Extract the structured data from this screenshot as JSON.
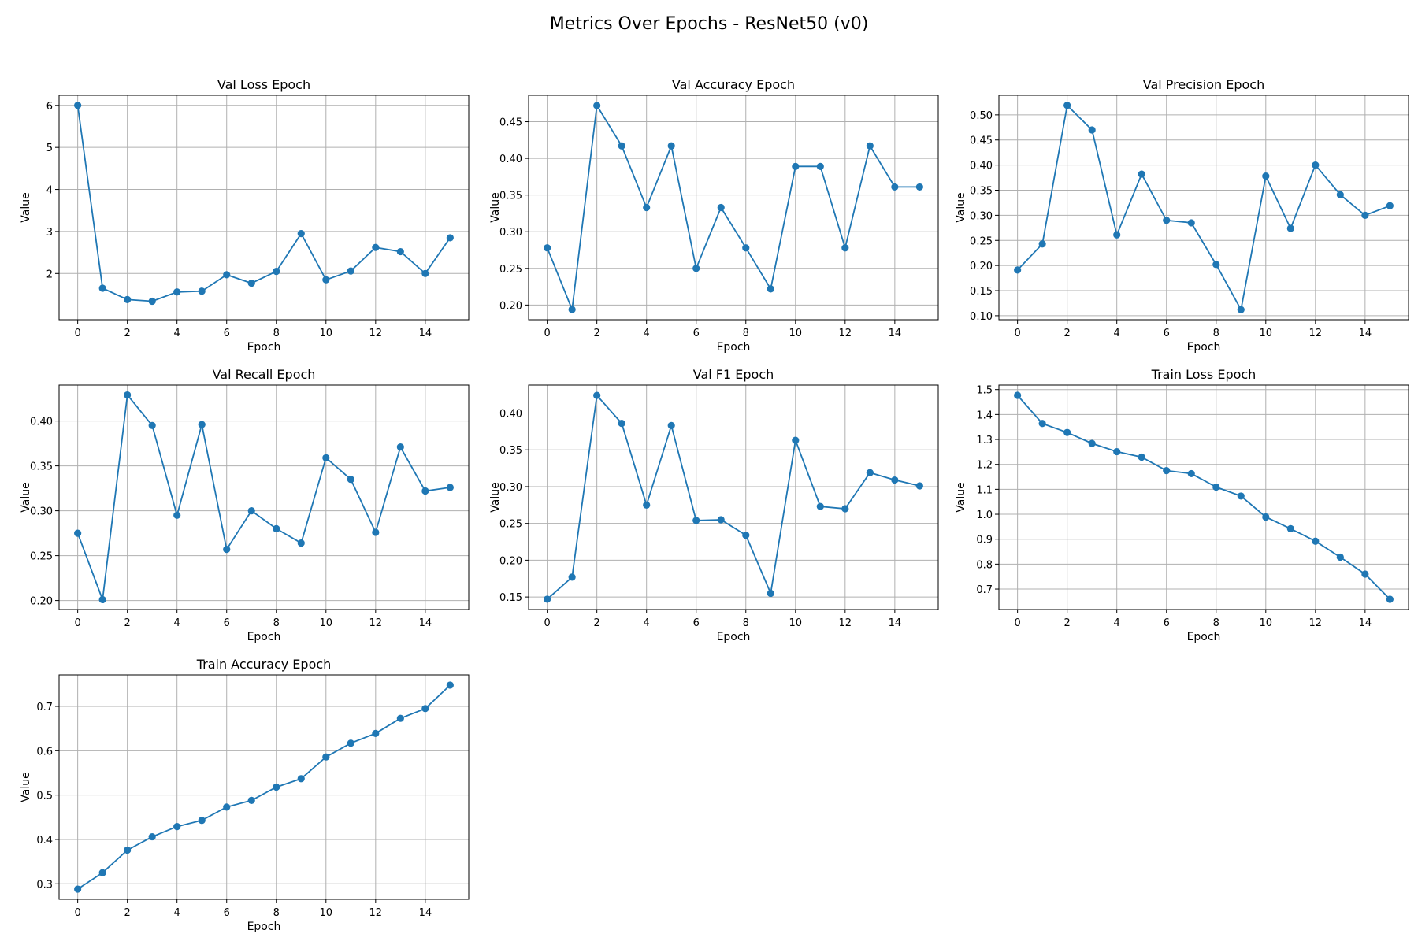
{
  "figure": {
    "title": "Metrics Over Epochs - ResNet50 (v0)",
    "line_color": "#1f77b4",
    "grid_color": "#b0b0b0"
  },
  "chart_data": [
    {
      "type": "line",
      "title": "Val Loss Epoch",
      "xlabel": "Epoch",
      "ylabel": "Value",
      "x": [
        0,
        1,
        2,
        3,
        4,
        5,
        6,
        7,
        8,
        9,
        10,
        11,
        12,
        13,
        14,
        15
      ],
      "values": [
        6.0,
        1.65,
        1.38,
        1.34,
        1.56,
        1.58,
        1.97,
        1.77,
        2.05,
        2.95,
        1.85,
        2.06,
        2.62,
        2.52,
        2.0,
        2.85
      ],
      "xlim": [
        -0.75,
        15.75
      ],
      "ylim": [
        0.9,
        6.24
      ],
      "xticks": [
        0,
        2,
        4,
        6,
        8,
        10,
        12,
        14
      ],
      "yticks": [
        2,
        3,
        4,
        5,
        6
      ],
      "ytick_labels": [
        "2",
        "3",
        "4",
        "5",
        "6"
      ],
      "grid": true
    },
    {
      "type": "line",
      "title": "Val Accuracy Epoch",
      "xlabel": "Epoch",
      "ylabel": "Value",
      "x": [
        0,
        1,
        2,
        3,
        4,
        5,
        6,
        7,
        8,
        9,
        10,
        11,
        12,
        13,
        14,
        15
      ],
      "values": [
        0.278,
        0.194,
        0.472,
        0.417,
        0.333,
        0.417,
        0.25,
        0.333,
        0.278,
        0.222,
        0.389,
        0.389,
        0.278,
        0.417,
        0.361,
        0.361
      ],
      "xlim": [
        -0.75,
        15.75
      ],
      "ylim": [
        0.18,
        0.486
      ],
      "xticks": [
        0,
        2,
        4,
        6,
        8,
        10,
        12,
        14
      ],
      "yticks": [
        0.2,
        0.25,
        0.3,
        0.35,
        0.4,
        0.45
      ],
      "ytick_labels": [
        "0.20",
        "0.25",
        "0.30",
        "0.35",
        "0.40",
        "0.45"
      ],
      "grid": true
    },
    {
      "type": "line",
      "title": "Val Precision Epoch",
      "xlabel": "Epoch",
      "ylabel": "Value",
      "x": [
        0,
        1,
        2,
        3,
        4,
        5,
        6,
        7,
        8,
        9,
        10,
        11,
        12,
        13,
        14,
        15
      ],
      "values": [
        0.191,
        0.243,
        0.519,
        0.47,
        0.261,
        0.382,
        0.29,
        0.285,
        0.202,
        0.112,
        0.378,
        0.274,
        0.4,
        0.341,
        0.3,
        0.319
      ],
      "xlim": [
        -0.75,
        15.75
      ],
      "ylim": [
        0.092,
        0.539
      ],
      "xticks": [
        0,
        2,
        4,
        6,
        8,
        10,
        12,
        14
      ],
      "yticks": [
        0.1,
        0.15,
        0.2,
        0.25,
        0.3,
        0.35,
        0.4,
        0.45,
        0.5
      ],
      "ytick_labels": [
        "0.10",
        "0.15",
        "0.20",
        "0.25",
        "0.30",
        "0.35",
        "0.40",
        "0.45",
        "0.50"
      ],
      "grid": true
    },
    {
      "type": "line",
      "title": "Val Recall Epoch",
      "xlabel": "Epoch",
      "ylabel": "Value",
      "x": [
        0,
        1,
        2,
        3,
        4,
        5,
        6,
        7,
        8,
        9,
        10,
        11,
        12,
        13,
        14,
        15
      ],
      "values": [
        0.275,
        0.201,
        0.429,
        0.395,
        0.295,
        0.396,
        0.257,
        0.3,
        0.28,
        0.264,
        0.359,
        0.335,
        0.276,
        0.371,
        0.322,
        0.326
      ],
      "xlim": [
        -0.75,
        15.75
      ],
      "ylim": [
        0.19,
        0.44
      ],
      "xticks": [
        0,
        2,
        4,
        6,
        8,
        10,
        12,
        14
      ],
      "yticks": [
        0.2,
        0.25,
        0.3,
        0.35,
        0.4
      ],
      "ytick_labels": [
        "0.20",
        "0.25",
        "0.30",
        "0.35",
        "0.40"
      ],
      "grid": true
    },
    {
      "type": "line",
      "title": "Val F1 Epoch",
      "xlabel": "Epoch",
      "ylabel": "Value",
      "x": [
        0,
        1,
        2,
        3,
        4,
        5,
        6,
        7,
        8,
        9,
        10,
        11,
        12,
        13,
        14,
        15
      ],
      "values": [
        0.147,
        0.177,
        0.424,
        0.386,
        0.275,
        0.383,
        0.254,
        0.255,
        0.234,
        0.155,
        0.363,
        0.273,
        0.27,
        0.319,
        0.309,
        0.301
      ],
      "xlim": [
        -0.75,
        15.75
      ],
      "ylim": [
        0.133,
        0.438
      ],
      "xticks": [
        0,
        2,
        4,
        6,
        8,
        10,
        12,
        14
      ],
      "yticks": [
        0.15,
        0.2,
        0.25,
        0.3,
        0.35,
        0.4
      ],
      "ytick_labels": [
        "0.15",
        "0.20",
        "0.25",
        "0.30",
        "0.35",
        "0.40"
      ],
      "grid": true
    },
    {
      "type": "line",
      "title": "Train Loss Epoch",
      "xlabel": "Epoch",
      "ylabel": "Value",
      "x": [
        0,
        1,
        2,
        3,
        4,
        5,
        6,
        7,
        8,
        9,
        10,
        11,
        12,
        13,
        14,
        15
      ],
      "values": [
        1.477,
        1.364,
        1.328,
        1.284,
        1.251,
        1.229,
        1.175,
        1.163,
        1.109,
        1.073,
        0.989,
        0.942,
        0.892,
        0.828,
        0.76,
        0.659
      ],
      "xlim": [
        -0.75,
        15.75
      ],
      "ylim": [
        0.618,
        1.518
      ],
      "xticks": [
        0,
        2,
        4,
        6,
        8,
        10,
        12,
        14
      ],
      "yticks": [
        0.7,
        0.8,
        0.9,
        1.0,
        1.1,
        1.2,
        1.3,
        1.4,
        1.5
      ],
      "ytick_labels": [
        "0.7",
        "0.8",
        "0.9",
        "1.0",
        "1.1",
        "1.2",
        "1.3",
        "1.4",
        "1.5"
      ],
      "grid": true
    },
    {
      "type": "line",
      "title": "Train Accuracy Epoch",
      "xlabel": "Epoch",
      "ylabel": "Value",
      "x": [
        0,
        1,
        2,
        3,
        4,
        5,
        6,
        7,
        8,
        9,
        10,
        11,
        12,
        13,
        14,
        15
      ],
      "values": [
        0.288,
        0.325,
        0.376,
        0.406,
        0.429,
        0.443,
        0.473,
        0.488,
        0.518,
        0.537,
        0.586,
        0.617,
        0.639,
        0.673,
        0.695,
        0.748
      ],
      "xlim": [
        -0.75,
        15.75
      ],
      "ylim": [
        0.265,
        0.771
      ],
      "xticks": [
        0,
        2,
        4,
        6,
        8,
        10,
        12,
        14
      ],
      "yticks": [
        0.3,
        0.4,
        0.5,
        0.6,
        0.7
      ],
      "ytick_labels": [
        "0.3",
        "0.4",
        "0.5",
        "0.6",
        "0.7"
      ],
      "grid": true
    }
  ]
}
